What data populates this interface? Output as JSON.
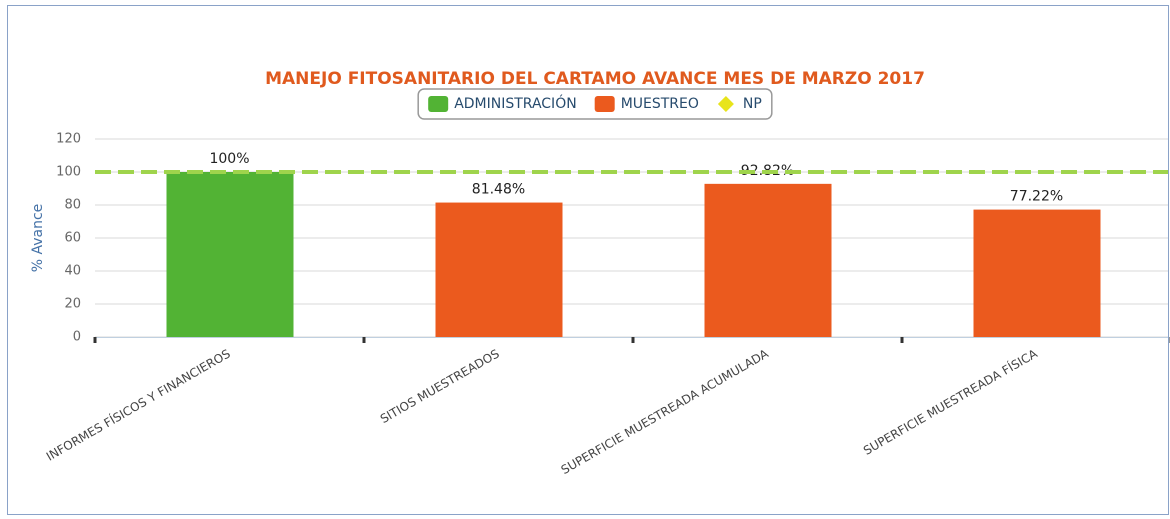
{
  "chart_data": {
    "type": "bar",
    "title": "MANEJO FITOSANITARIO DEL CARTAMO AVANCE MES DE MARZO 2017",
    "y_label": "% Avance",
    "categories": [
      "INFORMES FÍSICOS Y FINANCIEROS",
      "SITIOS MUESTREADOS",
      "SUPERFICIE MUESTREADA ACUMULADA",
      "SUPERFICIE MUESTREADA FÍSICA"
    ],
    "series": [
      {
        "name": "ADMINISTRACIÓN",
        "color": "#52b334",
        "type": "bar",
        "values": [
          100,
          null,
          null,
          null
        ],
        "value_labels": [
          "100%",
          null,
          null,
          null
        ]
      },
      {
        "name": "MUESTREO",
        "color": "#eb5a1e",
        "type": "bar",
        "values": [
          null,
          81.48,
          92.82,
          77.22
        ],
        "value_labels": [
          null,
          "81.48%",
          "92.82%",
          "77.22%"
        ]
      },
      {
        "name": "NP",
        "color": "#e8e41a",
        "line_color": "#9fd44c",
        "type": "line",
        "values": [
          100,
          100,
          100,
          100
        ]
      }
    ],
    "ylim": [
      0,
      120
    ],
    "yticks": [
      0,
      20,
      40,
      60,
      80,
      100,
      120
    ],
    "grid": true,
    "legend": "top"
  }
}
